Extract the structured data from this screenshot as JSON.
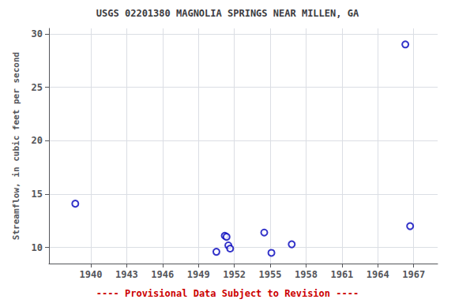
{
  "chart_data": {
    "type": "scatter",
    "title": "USGS 02201380 MAGNOLIA SPRINGS NEAR MILLEN, GA",
    "ylabel": "Streamflow, in cubic feet per second",
    "annotation": "---- Provisional Data Subject to Revision ----",
    "x": [
      1938.7,
      1950.5,
      1951.2,
      1951.35,
      1951.5,
      1951.65,
      1954.5,
      1955.1,
      1956.8,
      1966.3,
      1966.7
    ],
    "values": [
      14.1,
      9.6,
      11.1,
      11.0,
      10.2,
      9.9,
      11.4,
      9.5,
      10.3,
      29.0,
      12.0
    ],
    "xlim": [
      1936.5,
      1969.0
    ],
    "ylim": [
      8.5,
      30.5
    ],
    "xticks": [
      1940,
      1943,
      1946,
      1949,
      1952,
      1955,
      1958,
      1961,
      1964,
      1967
    ],
    "yticks": [
      10,
      15,
      20,
      25,
      30
    ],
    "color": "#0000bb",
    "marker": "open circle",
    "grid": true
  }
}
